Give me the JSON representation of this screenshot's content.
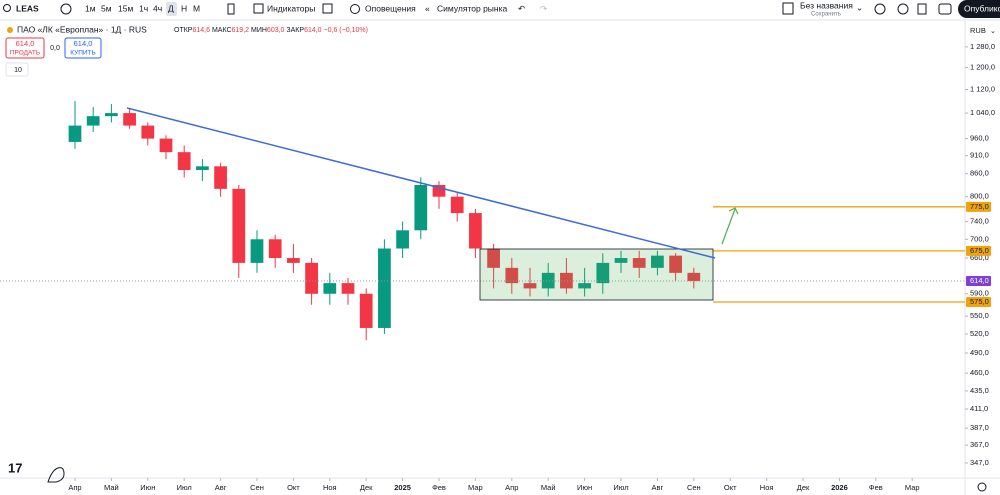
{
  "toolbar": {
    "symbol": "LEAS",
    "intervals": [
      "1м",
      "5м",
      "15м",
      "1ч",
      "4ч",
      "Д",
      "Н",
      "М"
    ],
    "indicators": "Индикаторы",
    "alerts": "Оповещения",
    "simulator": "Симулятор рынка",
    "layout_name": "Без названия",
    "save_status": "Сохранить",
    "publish": "Опублико"
  },
  "legend": {
    "title": "ПАО «ЛК «Европлан» · 1Д · RUS",
    "open_label": "ОТКР",
    "open": "614,6",
    "high_label": "МАКС",
    "high": "619,2",
    "low_label": "МИН",
    "low": "603,0",
    "close_label": "ЗАКР",
    "close": "614,0",
    "change": "−0,6 (−0,10%)",
    "sell_price": "614,0",
    "sell_label": "ПРОДАТЬ",
    "spread": "0,0",
    "buy_price": "614,0",
    "buy_label": "КУПИТЬ",
    "volume_toggle": "10"
  },
  "chart_data": {
    "type": "candlestick",
    "currency": "RUB",
    "log_scale": true,
    "x": [
      0,
      0.5,
      1,
      1.5,
      2,
      2.5,
      3,
      3.5,
      4,
      4.5,
      5,
      5.5,
      6,
      6.5,
      7,
      7.5,
      8,
      8.5,
      9,
      9.5,
      10,
      10.5,
      11,
      11.5,
      12,
      12.5,
      13,
      13.5,
      14,
      14.5,
      15,
      15.5,
      16,
      16.5,
      17
    ],
    "open": [
      950,
      1000,
      1030,
      1040,
      1000,
      960,
      920,
      870,
      880,
      820,
      650,
      700,
      660,
      650,
      590,
      610,
      590,
      530,
      680,
      720,
      830,
      800,
      760,
      680,
      640,
      610,
      600,
      630,
      600,
      610,
      650,
      660,
      640,
      665,
      630
    ],
    "high": [
      1080,
      1060,
      1070,
      1055,
      1010,
      970,
      940,
      900,
      890,
      830,
      720,
      710,
      690,
      660,
      630,
      620,
      600,
      700,
      740,
      850,
      840,
      810,
      770,
      690,
      660,
      640,
      650,
      660,
      640,
      670,
      675,
      675,
      675,
      670,
      640
    ],
    "low": [
      930,
      980,
      1010,
      990,
      940,
      900,
      850,
      840,
      800,
      620,
      630,
      640,
      630,
      570,
      570,
      570,
      510,
      520,
      660,
      700,
      770,
      740,
      660,
      600,
      590,
      585,
      585,
      590,
      585,
      590,
      630,
      620,
      625,
      615,
      600
    ],
    "close": [
      1000,
      1030,
      1040,
      1000,
      960,
      920,
      870,
      880,
      820,
      650,
      700,
      660,
      650,
      590,
      610,
      590,
      530,
      680,
      720,
      830,
      800,
      760,
      680,
      640,
      610,
      600,
      630,
      600,
      610,
      650,
      660,
      640,
      665,
      630,
      614
    ],
    "colors": {
      "up": "#089981",
      "down": "#f23645"
    },
    "ylim": [
      331,
      1384
    ],
    "yticks": [
      {
        "value": 1280,
        "label": "1 280,0"
      },
      {
        "value": 1200,
        "label": "1 200,0"
      },
      {
        "value": 1120,
        "label": "1 120,0"
      },
      {
        "value": 1040,
        "label": "1 040,0"
      },
      {
        "value": 960,
        "label": "960,0"
      },
      {
        "value": 910,
        "label": "910,0"
      },
      {
        "value": 860,
        "label": "860,0"
      },
      {
        "value": 800,
        "label": "800,0"
      },
      {
        "value": 740,
        "label": "740,0"
      },
      {
        "value": 700,
        "label": "700,0"
      },
      {
        "value": 660,
        "label": "660,0"
      },
      {
        "value": 590,
        "label": "590,0"
      },
      {
        "value": 550,
        "label": "550,0"
      },
      {
        "value": 520,
        "label": "520,0"
      },
      {
        "value": 490,
        "label": "490,0"
      },
      {
        "value": 460,
        "label": "460,0"
      },
      {
        "value": 435,
        "label": "435,0"
      },
      {
        "value": 411,
        "label": "411,0"
      },
      {
        "value": 387,
        "label": "387,0"
      },
      {
        "value": 367,
        "label": "367,0"
      },
      {
        "value": 347,
        "label": "347,0"
      }
    ],
    "xlim": [
      -2.06,
      24.45
    ],
    "xticks": [
      {
        "value": 0,
        "label": "Апр"
      },
      {
        "value": 1,
        "label": "Май"
      },
      {
        "value": 2,
        "label": "Июн"
      },
      {
        "value": 3,
        "label": "Июл"
      },
      {
        "value": 4,
        "label": "Авг"
      },
      {
        "value": 5,
        "label": "Сен"
      },
      {
        "value": 6,
        "label": "Окт"
      },
      {
        "value": 7,
        "label": "Ноя"
      },
      {
        "value": 8,
        "label": "Дек"
      },
      {
        "value": 9,
        "label": "2025"
      },
      {
        "value": 10,
        "label": "Фев"
      },
      {
        "value": 11,
        "label": "Мар"
      },
      {
        "value": 12,
        "label": "Апр"
      },
      {
        "value": 13,
        "label": "Май"
      },
      {
        "value": 14,
        "label": "Июн"
      },
      {
        "value": 15,
        "label": "Июл"
      },
      {
        "value": 16,
        "label": "Авг"
      },
      {
        "value": 17,
        "label": "Сен"
      },
      {
        "value": 18,
        "label": "Окт"
      },
      {
        "value": 19,
        "label": "Ноя"
      },
      {
        "value": 20,
        "label": "Дек"
      },
      {
        "value": 21,
        "label": "2026"
      },
      {
        "value": 22,
        "label": "Фев"
      },
      {
        "value": 23,
        "label": "Мар"
      }
    ],
    "levels": [
      {
        "value": 775,
        "label": "775,0",
        "color": "#f0a30a"
      },
      {
        "value": 675,
        "label": "675,0",
        "color": "#f0a30a"
      },
      {
        "value": 575,
        "label": "575,0",
        "color": "#f0a30a"
      }
    ],
    "last_price": {
      "value": 614,
      "label": "614,0",
      "color": "#7e3fd6"
    }
  }
}
